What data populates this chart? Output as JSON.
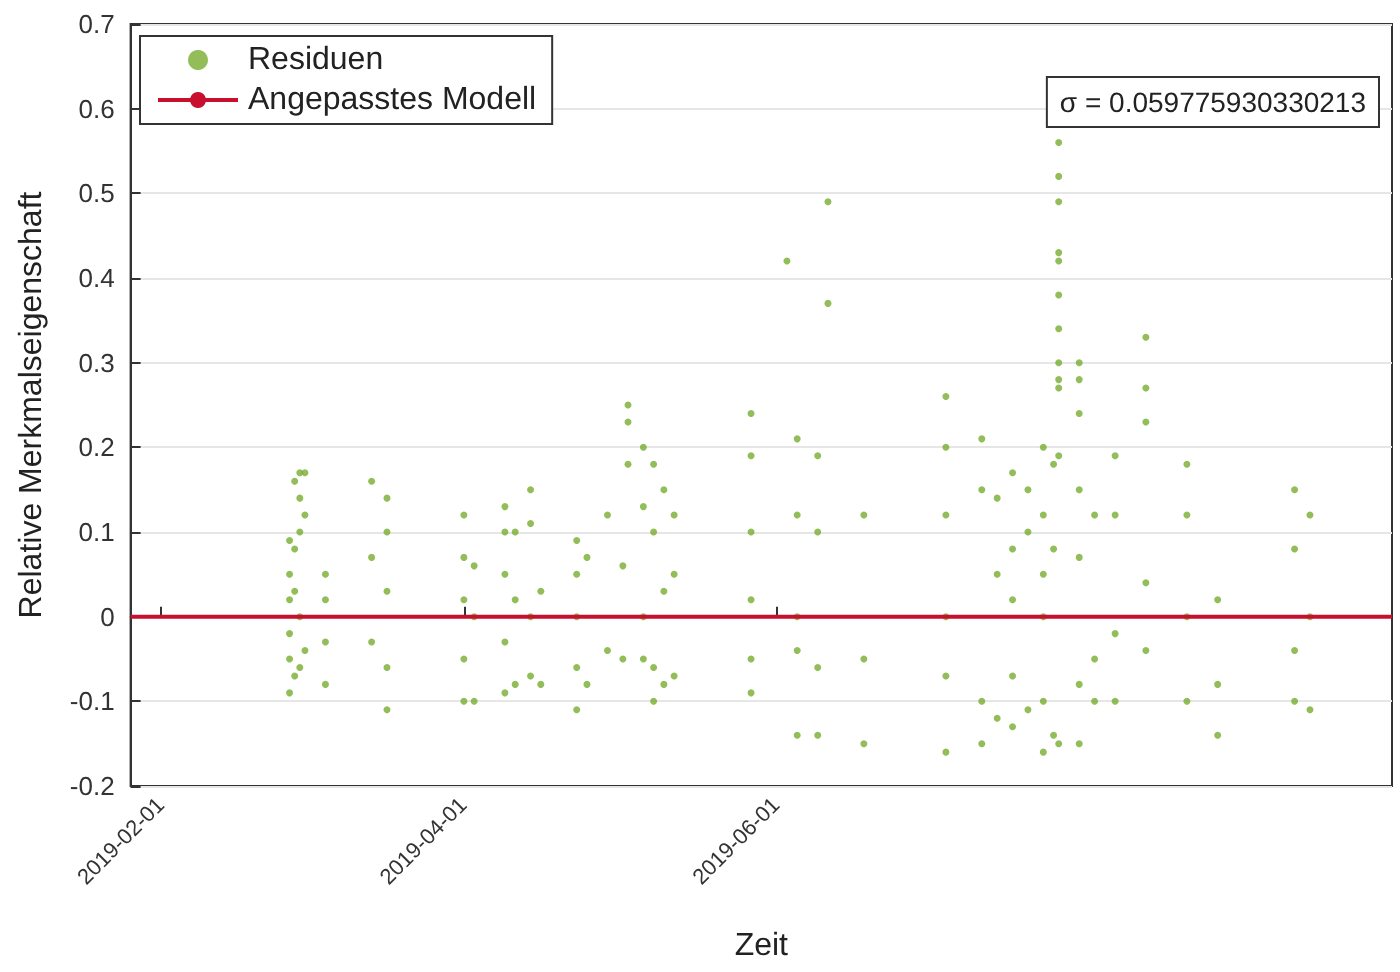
{
  "chart_data": {
    "type": "scatter",
    "xlabel": "Zeit",
    "ylabel": "Relative Merkmalseigenschaft",
    "annotations": [
      "σ = 0.059775930330213"
    ],
    "xlim": [
      "2019-01-26",
      "2019-09-29"
    ],
    "xticks": [
      "2019-02-01",
      "2019-04-01",
      "2019-06-01"
    ],
    "ylim": [
      -0.2,
      0.7
    ],
    "yticks": [
      -0.2,
      -0.1,
      0,
      0.1,
      0.2,
      0.3,
      0.4,
      0.5,
      0.6,
      0.7
    ],
    "grid": "y",
    "legend": "top left",
    "marker": "circle",
    "series": [
      {
        "name": "Residuen",
        "color": "#77ac30",
        "x": [
          "2019-02-26",
          "2019-02-26",
          "2019-02-26",
          "2019-02-26",
          "2019-02-26",
          "2019-02-26",
          "2019-02-27",
          "2019-02-27",
          "2019-02-27",
          "2019-02-27",
          "2019-02-28",
          "2019-02-28",
          "2019-02-28",
          "2019-02-28",
          "2019-02-28",
          "2019-03-01",
          "2019-03-01",
          "2019-03-01",
          "2019-03-05",
          "2019-03-05",
          "2019-03-05",
          "2019-03-05",
          "2019-03-14",
          "2019-03-14",
          "2019-03-14",
          "2019-03-17",
          "2019-03-17",
          "2019-03-17",
          "2019-03-17",
          "2019-03-17",
          "2019-04-01",
          "2019-04-01",
          "2019-04-01",
          "2019-04-01",
          "2019-04-01",
          "2019-04-03",
          "2019-04-03",
          "2019-04-03",
          "2019-04-09",
          "2019-04-09",
          "2019-04-09",
          "2019-04-09",
          "2019-04-09",
          "2019-04-11",
          "2019-04-11",
          "2019-04-11",
          "2019-04-14",
          "2019-04-14",
          "2019-04-14",
          "2019-04-14",
          "2019-04-16",
          "2019-04-16",
          "2019-04-23",
          "2019-04-23",
          "2019-04-23",
          "2019-04-23",
          "2019-04-23",
          "2019-04-25",
          "2019-04-25",
          "2019-04-29",
          "2019-04-29",
          "2019-05-02",
          "2019-05-02",
          "2019-05-03",
          "2019-05-03",
          "2019-05-03",
          "2019-05-06",
          "2019-05-06",
          "2019-05-06",
          "2019-05-06",
          "2019-05-08",
          "2019-05-08",
          "2019-05-08",
          "2019-05-08",
          "2019-05-10",
          "2019-05-10",
          "2019-05-10",
          "2019-05-12",
          "2019-05-12",
          "2019-05-12",
          "2019-05-27",
          "2019-05-27",
          "2019-05-27",
          "2019-05-27",
          "2019-05-27",
          "2019-05-27",
          "2019-06-03",
          "2019-06-05",
          "2019-06-05",
          "2019-06-05",
          "2019-06-05",
          "2019-06-05",
          "2019-06-09",
          "2019-06-09",
          "2019-06-09",
          "2019-06-09",
          "2019-06-11",
          "2019-06-11",
          "2019-06-18",
          "2019-06-18",
          "2019-06-18",
          "2019-07-04",
          "2019-07-04",
          "2019-07-04",
          "2019-07-04",
          "2019-07-04",
          "2019-07-04",
          "2019-07-11",
          "2019-07-11",
          "2019-07-11",
          "2019-07-11",
          "2019-07-14",
          "2019-07-14",
          "2019-07-14",
          "2019-07-17",
          "2019-07-17",
          "2019-07-17",
          "2019-07-17",
          "2019-07-17",
          "2019-07-20",
          "2019-07-20",
          "2019-07-20",
          "2019-07-23",
          "2019-07-23",
          "2019-07-23",
          "2019-07-23",
          "2019-07-23",
          "2019-07-23",
          "2019-07-25",
          "2019-07-25",
          "2019-07-25",
          "2019-07-26",
          "2019-07-26",
          "2019-07-26",
          "2019-07-26",
          "2019-07-26",
          "2019-07-26",
          "2019-07-26",
          "2019-07-26",
          "2019-07-26",
          "2019-07-26",
          "2019-07-26",
          "2019-07-26",
          "2019-07-30",
          "2019-07-30",
          "2019-07-30",
          "2019-07-30",
          "2019-07-30",
          "2019-07-30",
          "2019-07-30",
          "2019-08-02",
          "2019-08-02",
          "2019-08-02",
          "2019-08-06",
          "2019-08-06",
          "2019-08-06",
          "2019-08-06",
          "2019-08-12",
          "2019-08-12",
          "2019-08-12",
          "2019-08-12",
          "2019-08-12",
          "2019-08-20",
          "2019-08-20",
          "2019-08-20",
          "2019-08-20",
          "2019-08-26",
          "2019-08-26",
          "2019-08-26",
          "2019-09-10",
          "2019-09-10",
          "2019-09-10",
          "2019-09-10",
          "2019-09-13",
          "2019-09-13",
          "2019-09-13"
        ],
        "values": [
          0.09,
          0.05,
          0.02,
          -0.02,
          -0.05,
          -0.09,
          0.08,
          -0.07,
          0.16,
          0.03,
          0.17,
          0.14,
          0.1,
          -0.06,
          0,
          0.17,
          0.12,
          -0.04,
          0.05,
          -0.08,
          0.02,
          -0.03,
          0.16,
          0.07,
          -0.03,
          0.14,
          0.1,
          -0.11,
          -0.06,
          0.03,
          0.12,
          0.07,
          -0.1,
          -0.05,
          0.02,
          0.06,
          -0.1,
          0,
          0.13,
          0.1,
          -0.09,
          0.05,
          -0.03,
          0.1,
          -0.08,
          0.02,
          0.15,
          0.11,
          -0.07,
          0,
          0.03,
          -0.08,
          0.09,
          0.05,
          -0.11,
          -0.06,
          0,
          0.07,
          -0.08,
          0.12,
          -0.04,
          0.06,
          -0.05,
          0.25,
          0.23,
          0.18,
          0.2,
          0.13,
          -0.05,
          0,
          0.18,
          0.1,
          -0.1,
          -0.06,
          0.15,
          -0.08,
          0.03,
          0.12,
          0.05,
          -0.07,
          0.24,
          0.19,
          0.1,
          -0.05,
          -0.09,
          0.02,
          0.42,
          0.21,
          0.12,
          -0.04,
          -0.14,
          0,
          0.19,
          0.1,
          -0.14,
          -0.06,
          0.49,
          0.37,
          0.12,
          -0.05,
          -0.15,
          0.26,
          0.2,
          0.12,
          -0.07,
          -0.16,
          0,
          0.21,
          0.15,
          -0.1,
          -0.15,
          0.14,
          0.05,
          -0.12,
          0.17,
          0.08,
          -0.13,
          -0.07,
          0.02,
          0.15,
          0.1,
          -0.11,
          0.2,
          0.12,
          0.05,
          -0.16,
          -0.1,
          0,
          0.18,
          -0.14,
          0.08,
          0.56,
          0.52,
          0.49,
          0.43,
          0.42,
          0.38,
          0.34,
          0.3,
          0.28,
          0.27,
          0.19,
          -0.15,
          0.3,
          0.28,
          0.24,
          0.15,
          0.07,
          -0.15,
          -0.08,
          0.12,
          -0.1,
          -0.05,
          0.19,
          0.12,
          -0.1,
          -0.02,
          0.33,
          0.27,
          0.23,
          0.04,
          -0.04,
          0.18,
          0.12,
          -0.1,
          0,
          0.02,
          -0.14,
          -0.08,
          0.15,
          0.08,
          -0.1,
          -0.04,
          0.12,
          -0.11,
          0
        ]
      },
      {
        "name": "Angepasstes Modell",
        "type": "line",
        "color": "#c8102e",
        "marker": "none",
        "x": [
          "2019-01-26",
          "2019-09-29"
        ],
        "values": [
          0,
          0
        ]
      }
    ]
  }
}
